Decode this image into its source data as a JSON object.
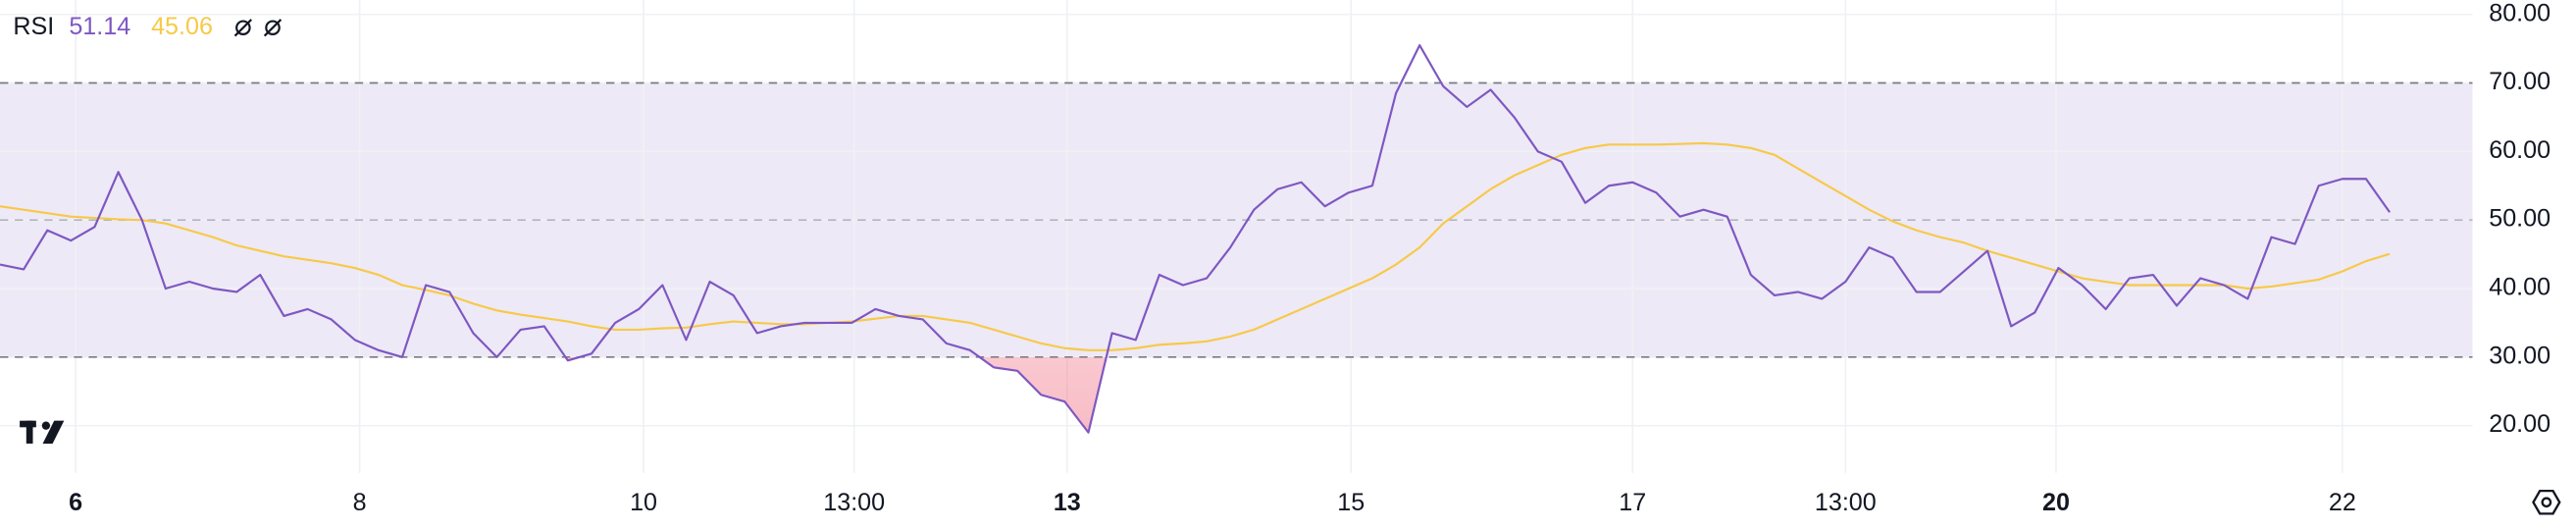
{
  "chart_data": {
    "type": "line",
    "legend_title": "RSI",
    "series": [
      {
        "color": "#7e57c2",
        "values": [
          43.5,
          42.8,
          48.5,
          47,
          49,
          57,
          50,
          40,
          41,
          40,
          39.5,
          42,
          36,
          37,
          35.5,
          32.5,
          31,
          30,
          40.5,
          39.5,
          33.5,
          30,
          34,
          34.5,
          29.5,
          30.5,
          35,
          37,
          40.5,
          32.5,
          41,
          39,
          33.5,
          34.5,
          35,
          35,
          35,
          37,
          36,
          35.5,
          32,
          31,
          28.5,
          28,
          24.5,
          23.5,
          19,
          33.5,
          32.5,
          42,
          40.5,
          41.5,
          46,
          51.5,
          54.5,
          55.5,
          52,
          54,
          55,
          68.5,
          75.5,
          69.5,
          66.5,
          69,
          65,
          60,
          58.5,
          52.5,
          55,
          55.5,
          54,
          50.5,
          51.5,
          50.5,
          42,
          39,
          39.5,
          38.5,
          41,
          46,
          44.5,
          39.5,
          39.5,
          42.5,
          45.5,
          34.5,
          36.5,
          43,
          40.5,
          37,
          41.5,
          42,
          37.5,
          41.5,
          40.5,
          38.5,
          47.5,
          46.5,
          55,
          56,
          56,
          51.14
        ]
      },
      {
        "color": "#f7c948",
        "values": [
          52,
          51.5,
          51,
          50.5,
          50.3,
          50.1,
          50,
          49.5,
          48.5,
          47.5,
          46.3,
          45.5,
          44.7,
          44.2,
          43.7,
          43,
          42,
          40.5,
          39.8,
          39,
          37.8,
          36.8,
          36.2,
          35.7,
          35.2,
          34.5,
          34,
          34,
          34.2,
          34.3,
          34.8,
          35.2,
          35,
          34.8,
          34.8,
          35,
          35.2,
          35.6,
          36,
          36,
          35.5,
          35,
          34,
          33,
          32,
          31.3,
          31,
          31,
          31.3,
          31.8,
          32,
          32.3,
          33,
          34,
          35.5,
          37,
          38.5,
          40,
          41.5,
          43.5,
          46,
          49.5,
          52,
          54.5,
          56.5,
          58,
          59.5,
          60.5,
          61,
          61,
          61,
          61.1,
          61.2,
          61,
          60.5,
          59.5,
          57.5,
          55.5,
          53.5,
          51.5,
          49.8,
          48.5,
          47.5,
          46.7,
          45.5,
          44.5,
          43.5,
          42.5,
          41.5,
          41,
          40.5,
          40.5,
          40.5,
          40.5,
          40.5,
          40,
          40.3,
          40.8,
          41.3,
          42.5,
          44,
          45.06
        ]
      }
    ],
    "xlim": [
      0,
      104.5
    ],
    "xticks": [
      {
        "value": 3.2,
        "label": "6",
        "bold": true
      },
      {
        "value": 15.2,
        "label": "8"
      },
      {
        "value": 27.2,
        "label": "10"
      },
      {
        "value": 36.1,
        "label": "13:00"
      },
      {
        "value": 45.1,
        "label": "13",
        "bold": true
      },
      {
        "value": 57.1,
        "label": "15"
      },
      {
        "value": 69,
        "label": "17"
      },
      {
        "value": 78,
        "label": "13:00"
      },
      {
        "value": 86.9,
        "label": "20",
        "bold": true
      },
      {
        "value": 99,
        "label": "22"
      }
    ],
    "ylim": [
      13.1,
      82.1
    ],
    "yticks": [
      {
        "value": 20,
        "label": "20.00"
      },
      {
        "value": 30,
        "label": "30.00"
      },
      {
        "value": 40,
        "label": "40.00"
      },
      {
        "value": 50,
        "label": "50.00"
      },
      {
        "value": 60,
        "label": "60.00"
      },
      {
        "value": 70,
        "label": "70.00"
      },
      {
        "value": 80,
        "label": "80.00"
      }
    ],
    "levels": [
      70,
      50,
      30
    ],
    "band_color": "#ede9f6",
    "oversold_color": "#f06b80",
    "grid": true
  }
}
